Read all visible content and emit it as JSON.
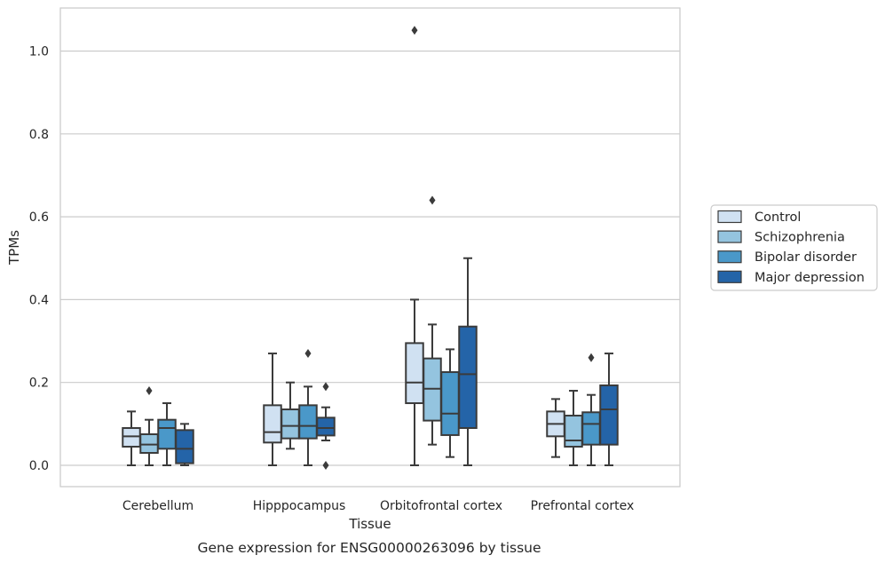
{
  "chart_data": {
    "type": "box",
    "xlabel": "Tissue",
    "ylabel": "TPMs",
    "caption": "Gene expression for ENSG00000263096 by tissue",
    "ylim": [
      -0.05,
      1.1
    ],
    "yticks": [
      0.0,
      0.2,
      0.4,
      0.6,
      0.8,
      1.0
    ],
    "ytick_labels": [
      "0.0",
      "0.2",
      "0.4",
      "0.6",
      "0.8",
      "1.0"
    ],
    "grid": "horizontal",
    "legend_position": "right",
    "categories": [
      "Cerebellum",
      "Hipppocampus",
      "Orbitofrontal cortex",
      "Prefrontal cortex"
    ],
    "series": [
      {
        "name": "Control",
        "color": "#d0e1f2",
        "boxes": [
          {
            "whislo": 0.0,
            "q1": 0.045,
            "med": 0.07,
            "q3": 0.09,
            "whishi": 0.13,
            "fliers": []
          },
          {
            "whislo": 0.0,
            "q1": 0.055,
            "med": 0.08,
            "q3": 0.145,
            "whishi": 0.27,
            "fliers": []
          },
          {
            "whislo": 0.0,
            "q1": 0.15,
            "med": 0.2,
            "q3": 0.295,
            "whishi": 0.4,
            "fliers": [
              1.05
            ]
          },
          {
            "whislo": 0.02,
            "q1": 0.07,
            "med": 0.1,
            "q3": 0.13,
            "whishi": 0.16,
            "fliers": []
          }
        ]
      },
      {
        "name": "Schizophrenia",
        "color": "#94c4df",
        "boxes": [
          {
            "whislo": 0.0,
            "q1": 0.03,
            "med": 0.05,
            "q3": 0.075,
            "whishi": 0.11,
            "fliers": [
              0.18
            ]
          },
          {
            "whislo": 0.04,
            "q1": 0.065,
            "med": 0.095,
            "q3": 0.135,
            "whishi": 0.2,
            "fliers": []
          },
          {
            "whislo": 0.05,
            "q1": 0.108,
            "med": 0.185,
            "q3": 0.258,
            "whishi": 0.34,
            "fliers": [
              0.64
            ]
          },
          {
            "whislo": 0.0,
            "q1": 0.045,
            "med": 0.06,
            "q3": 0.12,
            "whishi": 0.18,
            "fliers": []
          }
        ]
      },
      {
        "name": "Bipolar disorder",
        "color": "#4a98c9",
        "boxes": [
          {
            "whislo": 0.0,
            "q1": 0.04,
            "med": 0.09,
            "q3": 0.11,
            "whishi": 0.15,
            "fliers": []
          },
          {
            "whislo": 0.0,
            "q1": 0.065,
            "med": 0.095,
            "q3": 0.145,
            "whishi": 0.19,
            "fliers": [
              0.27
            ]
          },
          {
            "whislo": 0.02,
            "q1": 0.073,
            "med": 0.125,
            "q3": 0.225,
            "whishi": 0.28,
            "fliers": []
          },
          {
            "whislo": 0.0,
            "q1": 0.05,
            "med": 0.1,
            "q3": 0.128,
            "whishi": 0.17,
            "fliers": [
              0.26
            ]
          }
        ]
      },
      {
        "name": "Major depression",
        "color": "#2464a8",
        "boxes": [
          {
            "whislo": 0.0,
            "q1": 0.005,
            "med": 0.04,
            "q3": 0.085,
            "whishi": 0.1,
            "fliers": []
          },
          {
            "whislo": 0.06,
            "q1": 0.072,
            "med": 0.09,
            "q3": 0.115,
            "whishi": 0.14,
            "fliers": [
              0.19,
              0.0
            ]
          },
          {
            "whislo": 0.0,
            "q1": 0.09,
            "med": 0.22,
            "q3": 0.335,
            "whishi": 0.5,
            "fliers": []
          },
          {
            "whislo": 0.0,
            "q1": 0.05,
            "med": 0.135,
            "q3": 0.193,
            "whishi": 0.27,
            "fliers": []
          }
        ]
      }
    ]
  }
}
